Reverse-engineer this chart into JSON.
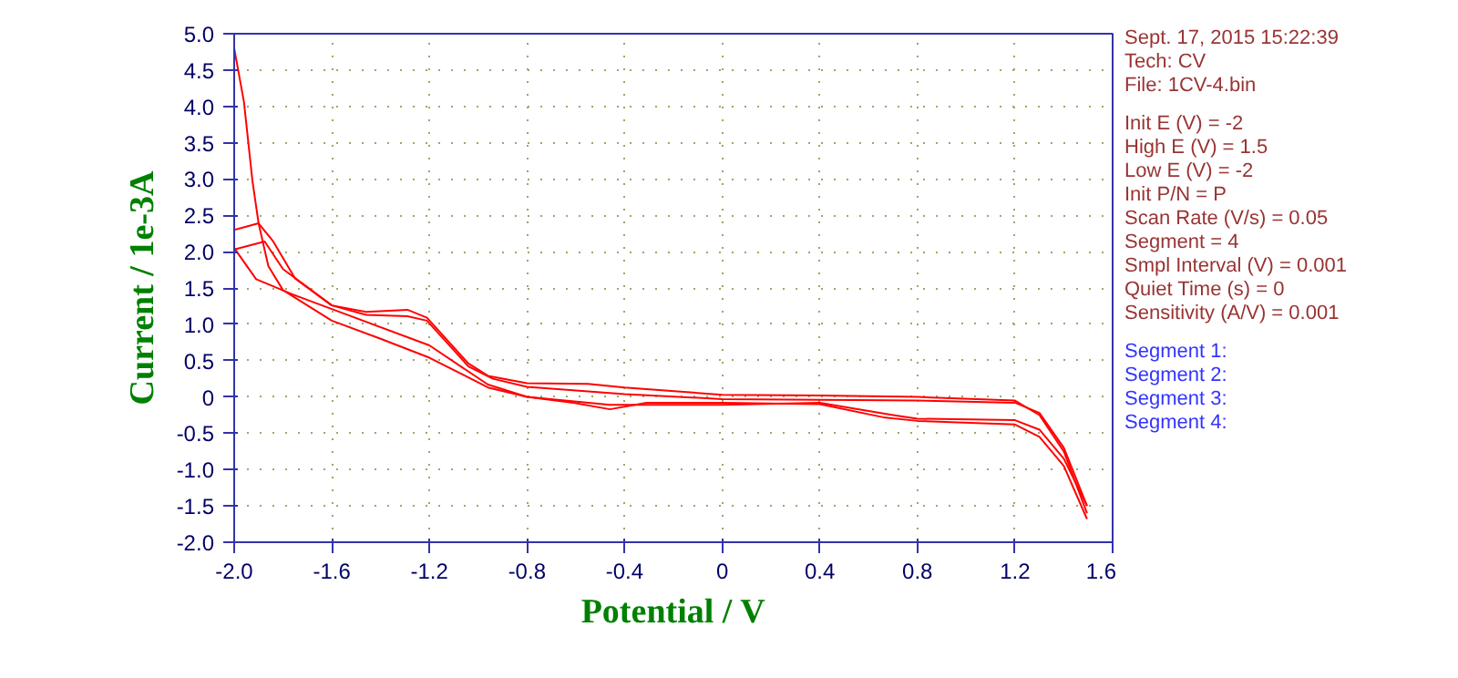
{
  "chart_data": {
    "type": "line",
    "xlabel": "Potential / V",
    "ylabel": "Current / 1e-3A",
    "xlim": [
      -2.0,
      1.6
    ],
    "ylim": [
      -2.0,
      5.0
    ],
    "xticks": [
      {
        "value": -2.0,
        "label": "-2.0"
      },
      -1.6,
      -1.2,
      -0.8,
      -0.4,
      0,
      0.4,
      0.8,
      1.2,
      1.6
    ],
    "yticks": [
      {
        "value": -2.0,
        "label": "-2.0"
      },
      -1.5,
      {
        "value": -1.0,
        "label": "-1.0"
      },
      -0.5,
      0,
      0.5,
      {
        "value": 1.0,
        "label": "1.0"
      },
      1.5,
      {
        "value": 2.0,
        "label": "2.0"
      },
      2.5,
      {
        "value": 3.0,
        "label": "3.0"
      },
      3.5,
      {
        "value": 4.0,
        "label": "4.0"
      },
      4.5,
      {
        "value": 5.0,
        "label": "5.0"
      }
    ],
    "grid": true,
    "marker": "none",
    "line_style": "solid",
    "series": [
      {
        "color": "#ff0000",
        "x": [
          -2.0,
          -1.96,
          -1.925,
          -1.9,
          -1.86,
          -1.8,
          -1.6,
          -1.4,
          -1.2,
          -1.0,
          -0.96,
          -0.8,
          -0.61,
          -0.46,
          -0.31,
          0,
          0.4,
          0.66,
          0.8,
          1.2,
          1.3,
          1.4,
          1.495
        ],
        "values": [
          4.8,
          4.06,
          2.97,
          2.39,
          1.8,
          1.47,
          1.05,
          0.8,
          0.54,
          0.2,
          0.13,
          0,
          -0.08,
          -0.17,
          -0.08,
          -0.08,
          -0.1,
          -0.28,
          -0.33,
          -0.38,
          -0.55,
          -0.95,
          -1.68
        ]
      },
      {
        "color": "#ff0000",
        "x": [
          1.495,
          1.4,
          1.3,
          1.2,
          0.8,
          0.4,
          0,
          -0.4,
          -0.55,
          -0.8,
          -0.96,
          -1.04,
          -1.21,
          -1.29,
          -1.46,
          -1.6,
          -1.75,
          -1.84,
          -1.9,
          -2.0
        ],
        "values": [
          -1.6,
          -0.75,
          -0.25,
          -0.05,
          0.0,
          0.02,
          0.03,
          0.13,
          0.18,
          0.19,
          0.29,
          0.46,
          1.09,
          1.2,
          1.17,
          1.26,
          1.63,
          2.14,
          2.39,
          2.3
        ]
      },
      {
        "color": "#ff0000",
        "x": [
          -2.0,
          -1.91,
          -1.76,
          -1.6,
          -1.2,
          -0.96,
          -0.8,
          -0.46,
          0,
          0.4,
          0.7,
          0.8,
          1.2,
          1.3,
          1.4,
          1.495
        ],
        "values": [
          2.05,
          1.62,
          1.41,
          1.21,
          0.71,
          0.17,
          0,
          -0.11,
          -0.11,
          -0.08,
          -0.25,
          -0.3,
          -0.32,
          -0.45,
          -0.85,
          -1.5
        ]
      },
      {
        "color": "#ff0000",
        "x": [
          1.495,
          1.4,
          1.3,
          1.2,
          0.8,
          0.4,
          0,
          -0.4,
          -0.8,
          -0.94,
          -1.04,
          -1.21,
          -1.29,
          -1.46,
          -1.6,
          -1.8,
          -1.875,
          -2.0
        ],
        "values": [
          -1.5,
          -0.7,
          -0.22,
          -0.08,
          -0.05,
          -0.04,
          -0.03,
          0.04,
          0.14,
          0.25,
          0.42,
          1.05,
          1.11,
          1.13,
          1.26,
          1.76,
          2.14,
          2.03
        ]
      }
    ],
    "annotations": [
      "Sept. 17, 2015   15:22:39",
      "Tech: CV",
      "File: 1CV-4.bin",
      "Init E (V) = -2",
      "High E (V) = 1.5",
      "Low E (V) = -2",
      "Init P/N = P",
      "Scan Rate (V/s) = 0.05",
      "Segment = 4",
      "Smpl Interval (V) = 0.001",
      "Quiet Time (s) = 0",
      "Sensitivity (A/V) = 0.001",
      "Segment 1:",
      "Segment 2:",
      "Segment 3:",
      "Segment 4:"
    ]
  }
}
